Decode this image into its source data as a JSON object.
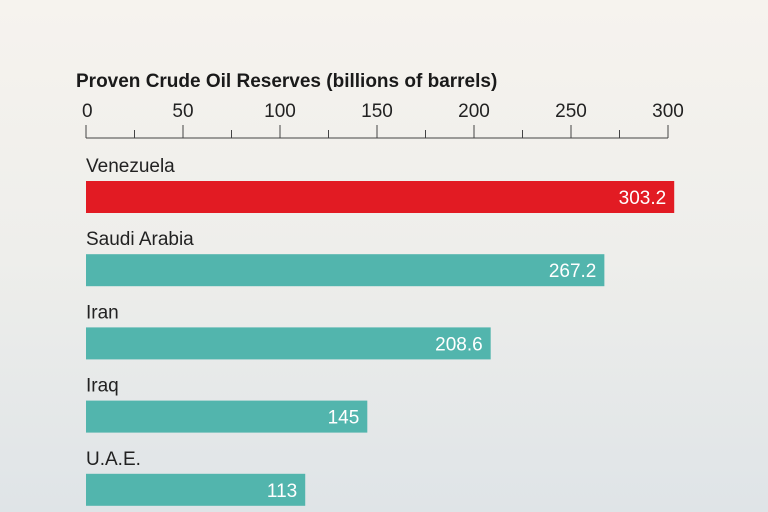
{
  "chart_data": {
    "type": "bar",
    "orientation": "horizontal",
    "title": "Proven Crude Oil Reserves (billions of barrels)",
    "categories": [
      "Venezuela",
      "Saudi Arabia",
      "Iran",
      "Iraq",
      "U.A.E."
    ],
    "values": [
      303.2,
      267.2,
      208.6,
      145,
      113
    ],
    "value_labels": [
      "303.2",
      "267.2",
      "208.6",
      "145",
      "113"
    ],
    "xlim": [
      0,
      300
    ],
    "x_ticks": [
      "0",
      "50",
      "100",
      "150",
      "200",
      "250",
      "300"
    ],
    "axis_position": "top",
    "grid": false,
    "colors": {
      "highlight": "#e21b23",
      "default": "#52b5ad"
    },
    "highlight_index": 0
  }
}
